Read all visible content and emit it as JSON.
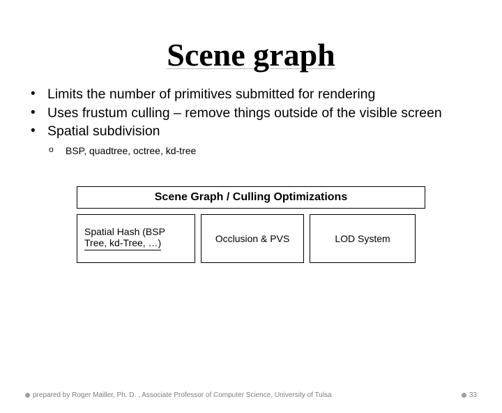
{
  "title": "Scene graph",
  "bullets": [
    "Limits the number of primitives submitted for rendering",
    "Uses frustum culling – remove things outside of the visible screen",
    "Spatial subdivision"
  ],
  "sub_bullets": [
    "BSP, quadtree, octree, kd-tree"
  ],
  "diagram": {
    "heading": "Scene Graph / Culling Optimizations",
    "boxes": [
      {
        "lines": [
          "Spatial Hash (BSP",
          "Tree, kd-Tree, …)"
        ],
        "underline": true
      },
      {
        "lines": [
          "Occlusion & PVS"
        ],
        "underline": false
      },
      {
        "lines": [
          "LOD System"
        ],
        "underline": false
      }
    ]
  },
  "footer": {
    "credit": "prepared by Roger Mailler, Ph. D. , Associate Professor of Computer Science, University of Tulsa",
    "page_number": "33"
  },
  "colors": {
    "text": "#000000",
    "footer_text": "#7d7d7d",
    "dot": "#9d9d9d",
    "underline": "#bcbcbc",
    "background": "#ffffff"
  },
  "typography": {
    "title_font": "Garamond/Times",
    "title_size_pt": 34,
    "body_font": "Arial",
    "body_size_pt": 15,
    "sub_size_pt": 10,
    "diagram_title_size_pt": 12,
    "diagram_box_size_pt": 11,
    "footer_size_pt": 7
  }
}
